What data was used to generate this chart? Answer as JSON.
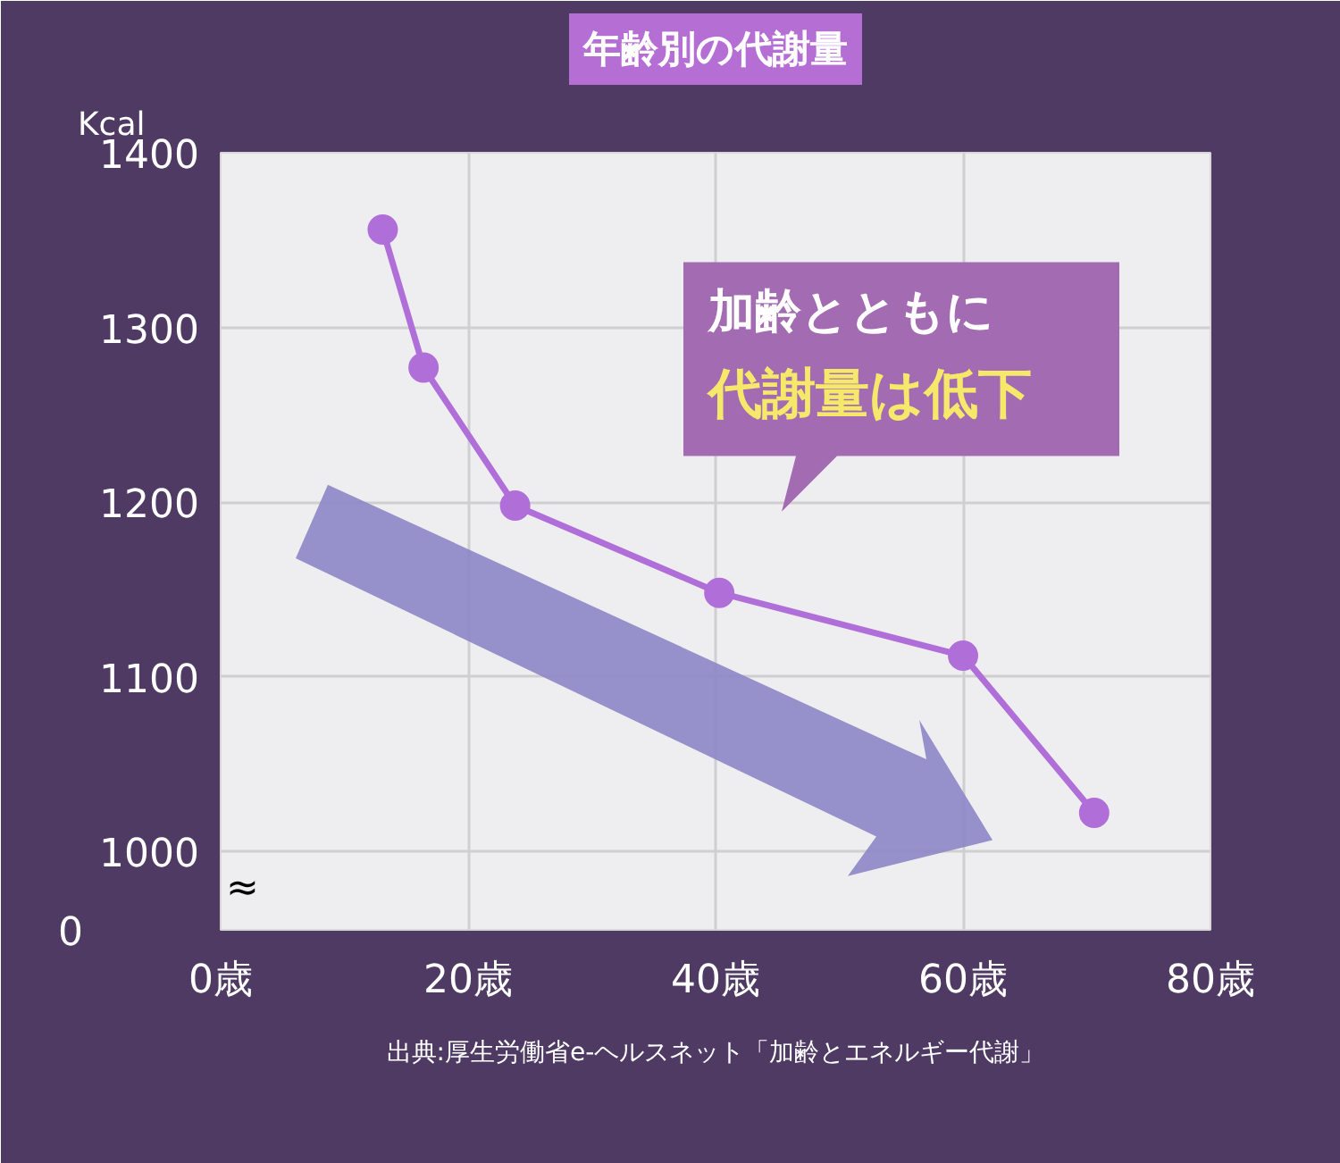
{
  "chart_data": {
    "type": "line",
    "title": "年齢別の代謝量",
    "ylabel": "Kcal",
    "x": [
      13.1,
      16.4,
      23.8,
      40.3,
      60.0,
      70.6
    ],
    "series": [
      {
        "color": "#b06fd8",
        "values": [
          1356,
          1277,
          1198,
          1148,
          1112,
          1022
        ]
      }
    ],
    "xlim": [
      0,
      80
    ],
    "xticks": [
      {
        "value": 0,
        "label": "0歳"
      },
      {
        "value": 20,
        "label": "20歳"
      },
      {
        "value": 40,
        "label": "40歳"
      },
      {
        "value": 60,
        "label": "60歳"
      },
      {
        "value": 80,
        "label": "80歳"
      }
    ],
    "ylim": [
      955,
      1400
    ],
    "yticks": [
      1000,
      1100,
      1200,
      1300,
      1400
    ],
    "grid": true,
    "marker": "circle",
    "line_style": "solid",
    "annotations": [
      "0",
      "≈",
      "加齢とともに",
      "代謝量は低下",
      "出典:厚生労働省e-ヘルスネット「加齢とエネルギー代謝」"
    ]
  }
}
